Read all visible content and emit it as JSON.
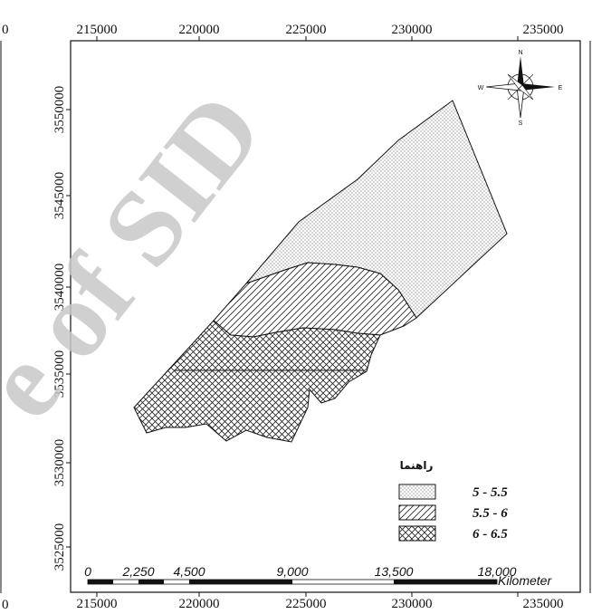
{
  "map": {
    "x_ticks_top": [
      "215000",
      "220000",
      "225000",
      "230000",
      "235000"
    ],
    "x_ticks_bottom": [
      "215000",
      "220000",
      "225000",
      "230000",
      "235000"
    ],
    "y_ticks": [
      "3550000",
      "3545000",
      "3540000",
      "3535000",
      "3530000",
      "3525000"
    ],
    "edge_labels": {
      "top_left": "0",
      "bottom_left": "0"
    }
  },
  "compass": {
    "north": "N",
    "south": "S",
    "east": "E",
    "west": "W"
  },
  "legend": {
    "title": "راهنما",
    "items": [
      {
        "label": "5 - 5.5",
        "pattern": "dots"
      },
      {
        "label": "5.5 - 6",
        "pattern": "diagonal-hatch"
      },
      {
        "label": "6 - 6.5",
        "pattern": "cross-hatch"
      }
    ]
  },
  "scale_bar": {
    "labels": [
      "0",
      "2,250",
      "4,500",
      "9,000",
      "13,500",
      "18,000"
    ],
    "unit": "Kilometer"
  },
  "watermark": {
    "text": "e of SID"
  },
  "colors": {
    "ink": "#111111",
    "watermark": "#c8c8c8",
    "background": "#ffffff"
  }
}
